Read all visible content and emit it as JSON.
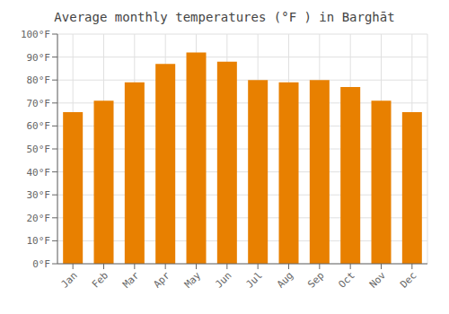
{
  "chart_data": {
    "type": "bar",
    "title": "Average monthly temperatures (°F ) in Barghāt",
    "categories": [
      "Jan",
      "Feb",
      "Mar",
      "Apr",
      "May",
      "Jun",
      "Jul",
      "Aug",
      "Sep",
      "Oct",
      "Nov",
      "Dec"
    ],
    "values": [
      66,
      71,
      79,
      87,
      92,
      88,
      80,
      79,
      80,
      77,
      71,
      66
    ],
    "color": "#E88000",
    "ylim": [
      0,
      100
    ],
    "yticks": [
      {
        "value": 0,
        "label": "0°F"
      },
      {
        "value": 10,
        "label": "10°F"
      },
      {
        "value": 20,
        "label": "20°F"
      },
      {
        "value": 30,
        "label": "30°F"
      },
      {
        "value": 40,
        "label": "40°F"
      },
      {
        "value": 50,
        "label": "50°F"
      },
      {
        "value": 60,
        "label": "60°F"
      },
      {
        "value": 70,
        "label": "70°F"
      },
      {
        "value": 80,
        "label": "80°F"
      },
      {
        "value": 90,
        "label": "90°F"
      },
      {
        "value": 100,
        "label": "100°F"
      }
    ],
    "grid": true
  }
}
